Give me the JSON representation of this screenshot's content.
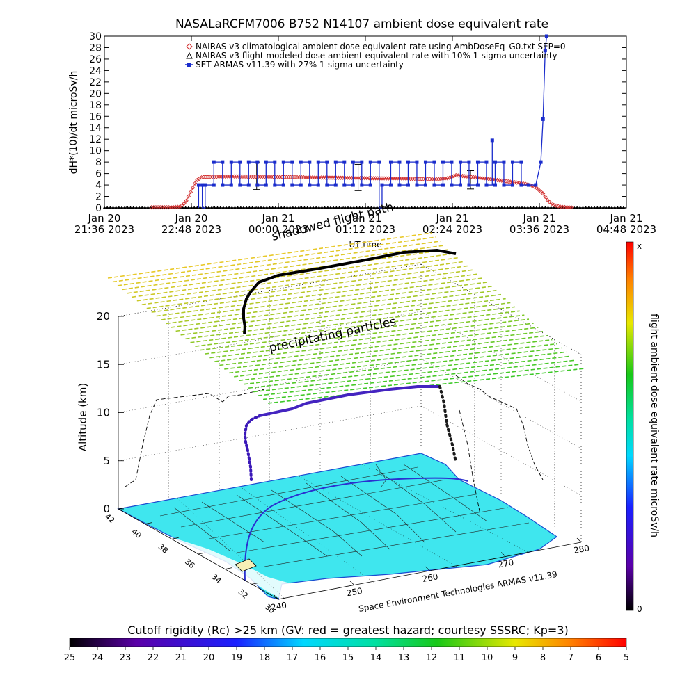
{
  "chart_data": [
    {
      "type": "line",
      "title": "NASALaRCFM7006  B752 N14107 ambient dose equivalent rate",
      "xlabel": "UT time",
      "ylabel": "dH*(10)/dt microSv/h",
      "ylim": [
        0,
        30
      ],
      "yticks": [
        "0",
        "2",
        "4",
        "6",
        "8",
        "10",
        "12",
        "14",
        "16",
        "18",
        "20",
        "22",
        "24",
        "26",
        "28",
        "30"
      ],
      "xlim_hours": [
        0,
        7.2
      ],
      "xticks": [
        {
          "t": 0.0,
          "line1": "Jan 20",
          "line2": "21:36 2023"
        },
        {
          "t": 1.2,
          "line1": "Jan 20",
          "line2": "22:48 2023"
        },
        {
          "t": 2.4,
          "line1": "Jan 21",
          "line2": "00:00 2023"
        },
        {
          "t": 3.6,
          "line1": "Jan 21",
          "line2": "01:12 2023"
        },
        {
          "t": 4.8,
          "line1": "Jan 21",
          "line2": "02:24 2023"
        },
        {
          "t": 6.0,
          "line1": "Jan 21",
          "line2": "03:36 2023"
        },
        {
          "t": 7.2,
          "line1": "Jan 21",
          "line2": "04:48 2023"
        }
      ],
      "legend_position": "top",
      "legend": [
        {
          "symbol": "diamond",
          "color": "#d23030",
          "text": "NAIRAS v3 climatological ambient dose equivalent rate using AmbDoseEq_G0.txt SEP=0"
        },
        {
          "symbol": "triangle",
          "color": "#000000",
          "text": "NAIRAS v3 flight modeled dose ambient equivalent rate with 10% 1-sigma uncertainty"
        },
        {
          "symbol": "square",
          "color": "#1a2ccc",
          "text": "SET ARMAS v11.39 with 27% 1-sigma uncertainty"
        }
      ],
      "series": [
        {
          "name": "NAIRAS v3 climatological",
          "color": "#d23030",
          "points": [
            [
              0.65,
              0.1
            ],
            [
              0.9,
              0.1
            ],
            [
              1.05,
              0.2
            ],
            [
              1.12,
              1.0
            ],
            [
              1.2,
              3.0
            ],
            [
              1.27,
              4.8
            ],
            [
              1.35,
              5.4
            ],
            [
              1.8,
              5.5
            ],
            [
              2.4,
              5.4
            ],
            [
              3.0,
              5.3
            ],
            [
              3.6,
              5.2
            ],
            [
              4.2,
              5.1
            ],
            [
              4.6,
              5.0
            ],
            [
              4.75,
              5.2
            ],
            [
              4.85,
              5.7
            ],
            [
              5.0,
              5.5
            ],
            [
              5.4,
              4.9
            ],
            [
              5.7,
              4.4
            ],
            [
              5.85,
              4.1
            ],
            [
              5.95,
              3.6
            ],
            [
              6.05,
              2.5
            ],
            [
              6.12,
              1.2
            ],
            [
              6.2,
              0.5
            ],
            [
              6.3,
              0.15
            ],
            [
              6.45,
              0.1
            ]
          ]
        },
        {
          "name": "NAIRAS v3 flight modeled",
          "color": "#000000",
          "points": [
            [
              0.0,
              0.0
            ],
            [
              1.3,
              0.0
            ],
            [
              2.4,
              0.0
            ],
            [
              4.8,
              0.0
            ],
            [
              6.45,
              0.0
            ],
            [
              7.2,
              0.0
            ]
          ],
          "error_bars": [
            [
              2.1,
              5.6,
              2.4
            ],
            [
              3.5,
              5.3,
              2.3
            ],
            [
              5.05,
              4.9,
              1.6
            ]
          ]
        },
        {
          "name": "SET ARMAS v11.39",
          "color": "#1a2ccc",
          "levels": [
            4,
            8
          ],
          "start": 1.3,
          "end": 6.05,
          "low_segments": [
            [
              1.3,
              1.35
            ],
            [
              3.78,
              3.9
            ],
            [
              4.48,
              4.52
            ],
            [
              5.55,
              5.6
            ]
          ],
          "tail": [
            [
              5.85,
              4
            ],
            [
              5.95,
              4
            ],
            [
              6.02,
              8
            ],
            [
              6.05,
              15.5
            ],
            [
              6.08,
              27.5
            ],
            [
              6.1,
              30
            ]
          ],
          "spike": [
            5.35,
            11.8
          ]
        }
      ]
    },
    {
      "type": "scatter",
      "chart_kind": "3d-flight-trajectory",
      "zlabel": "Altitude (km)",
      "zticks": [
        "0",
        "5",
        "10",
        "15",
        "20"
      ],
      "lat_ticks": [
        "42",
        "40",
        "38",
        "36",
        "34",
        "32",
        "30"
      ],
      "lon_ticks": [
        "240",
        "250",
        "260",
        "270",
        "280"
      ],
      "colorbar_label": "flight ambient dose equivalent rate microSv/h",
      "colorbar_top": "x",
      "colorbar_bottom": "0",
      "annotations": [
        "shadowed flight path",
        "precipitating particles"
      ],
      "credit": "Space Environment Technologies ARMAS v11.39"
    },
    {
      "type": "heatmap",
      "chart_kind": "colorbar",
      "title": "Cutoff rigidity (Rc) >25 km (GV: red = greatest hazard; courtesy SSSRC; Kp=3)",
      "ticks": [
        "25",
        "24",
        "23",
        "22",
        "21",
        "20",
        "19",
        "18",
        "17",
        "16",
        "15",
        "14",
        "13",
        "12",
        "11",
        "10",
        "9",
        "8",
        "7",
        "6",
        "5"
      ]
    }
  ]
}
